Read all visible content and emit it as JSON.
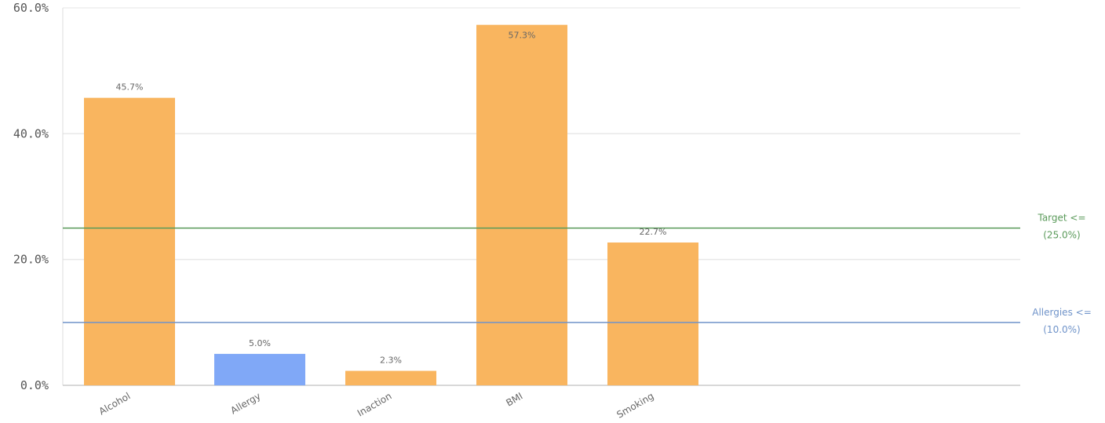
{
  "chart_data": {
    "type": "bar",
    "title": "",
    "xlabel": "",
    "ylabel": "",
    "ylim": [
      0,
      60
    ],
    "y_ticks": [
      0,
      20,
      40,
      60
    ],
    "y_tick_labels": [
      "0.0%",
      "20.0%",
      "40.0%",
      "60.0%"
    ],
    "grid": true,
    "categories": [
      "Alcohol",
      "Allergy",
      "Inaction",
      "BMI",
      "Smoking"
    ],
    "category_labels_visible": [
      "Alcohol",
      "Allergy",
      "Inaction",
      "BMI",
      "Smoking"
    ],
    "values": [
      45.7,
      5.0,
      2.3,
      57.3,
      22.7
    ],
    "value_labels": [
      "45.7%",
      "5.0%",
      "2.3%",
      "57.3%",
      "22.7%"
    ],
    "bar_colors": [
      "#f9b55f",
      "#80a8f7",
      "#f9b55f",
      "#f9b55f",
      "#f9b55f"
    ],
    "reference_lines": [
      {
        "value": 25.0,
        "label_line1": "Target <=",
        "label_line2": "(25.0%)",
        "color": "#5a9a5a"
      },
      {
        "value": 10.0,
        "label_line1": "Allergies <=",
        "label_line2": "(10.0%)",
        "color": "#6f93c9"
      }
    ]
  }
}
